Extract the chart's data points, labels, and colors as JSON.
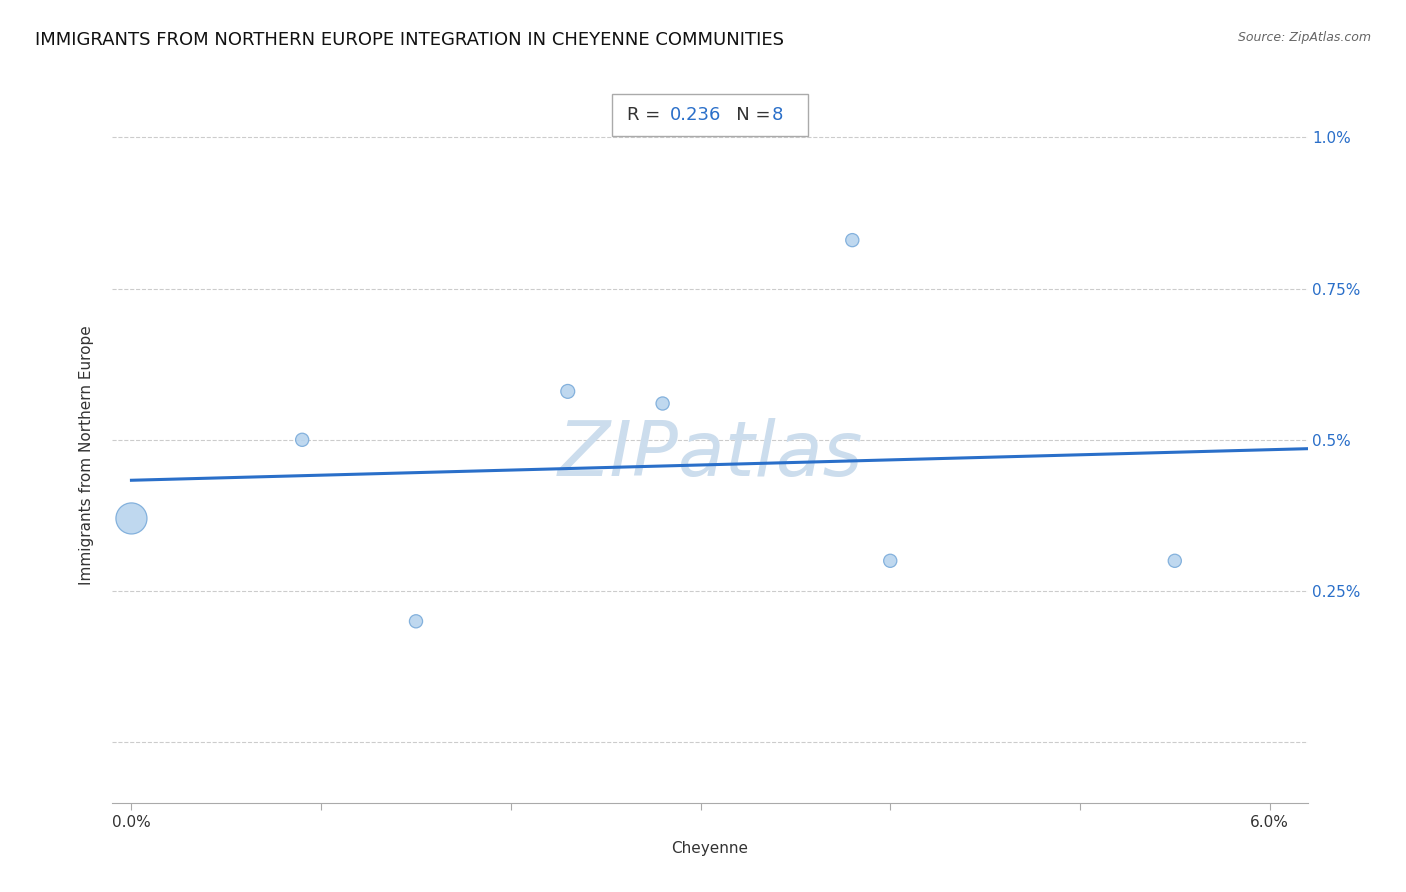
{
  "title": "IMMIGRANTS FROM NORTHERN EUROPE INTEGRATION IN CHEYENNE COMMUNITIES",
  "source": "Source: ZipAtlas.com",
  "xlabel": "Cheyenne",
  "ylabel": "Immigrants from Northern Europe",
  "xlim": [
    -0.001,
    0.062
  ],
  "ylim": [
    -0.001,
    0.0105
  ],
  "xtick_positions": [
    0.0,
    0.01,
    0.02,
    0.03,
    0.04,
    0.05,
    0.06
  ],
  "xticklabels": [
    "0.0%",
    "",
    "",
    "",
    "",
    "",
    "6.0%"
  ],
  "ytick_positions": [
    0.0,
    0.0025,
    0.005,
    0.0075,
    0.01
  ],
  "yticklabels_right": [
    "",
    "0.25%",
    "0.5%",
    "0.75%",
    "1.0%"
  ],
  "R_value": "0.236",
  "N_value": "8",
  "scatter_x": [
    0.0,
    0.009,
    0.015,
    0.023,
    0.028,
    0.038,
    0.04,
    0.055
  ],
  "scatter_y": [
    0.0037,
    0.005,
    0.002,
    0.0058,
    0.0056,
    0.0083,
    0.003,
    0.003
  ],
  "scatter_sizes": [
    500,
    90,
    90,
    100,
    90,
    90,
    90,
    90
  ],
  "scatter_color": "#b8d4ee",
  "scatter_edgecolor": "#7aabda",
  "regression_color": "#2a6fc9",
  "regression_lw": 2.2,
  "grid_color": "#cccccc",
  "grid_linestyle": "--",
  "background_color": "#ffffff",
  "title_fontsize": 13,
  "axis_label_fontsize": 11,
  "tick_fontsize": 11,
  "text_color": "#333333",
  "annotation_color_label": "#333333",
  "annotation_color_value": "#2a6fc9",
  "watermark_color": "#ccdded",
  "watermark_fontsize": 55,
  "source_color": "#666666",
  "source_fontsize": 9
}
